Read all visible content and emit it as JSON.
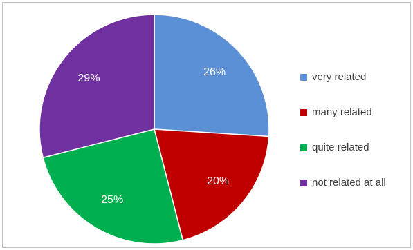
{
  "chart_data": {
    "type": "pie",
    "title": "",
    "legend_position": "right",
    "categories": [
      "very related",
      "many related",
      "quite related",
      "not related at all"
    ],
    "values": [
      26,
      20,
      25,
      29
    ],
    "labels": [
      "26%",
      "20%",
      "25%",
      "29%"
    ],
    "colors": [
      "#5b8fd6",
      "#c00000",
      "#00b050",
      "#7030a0"
    ]
  }
}
